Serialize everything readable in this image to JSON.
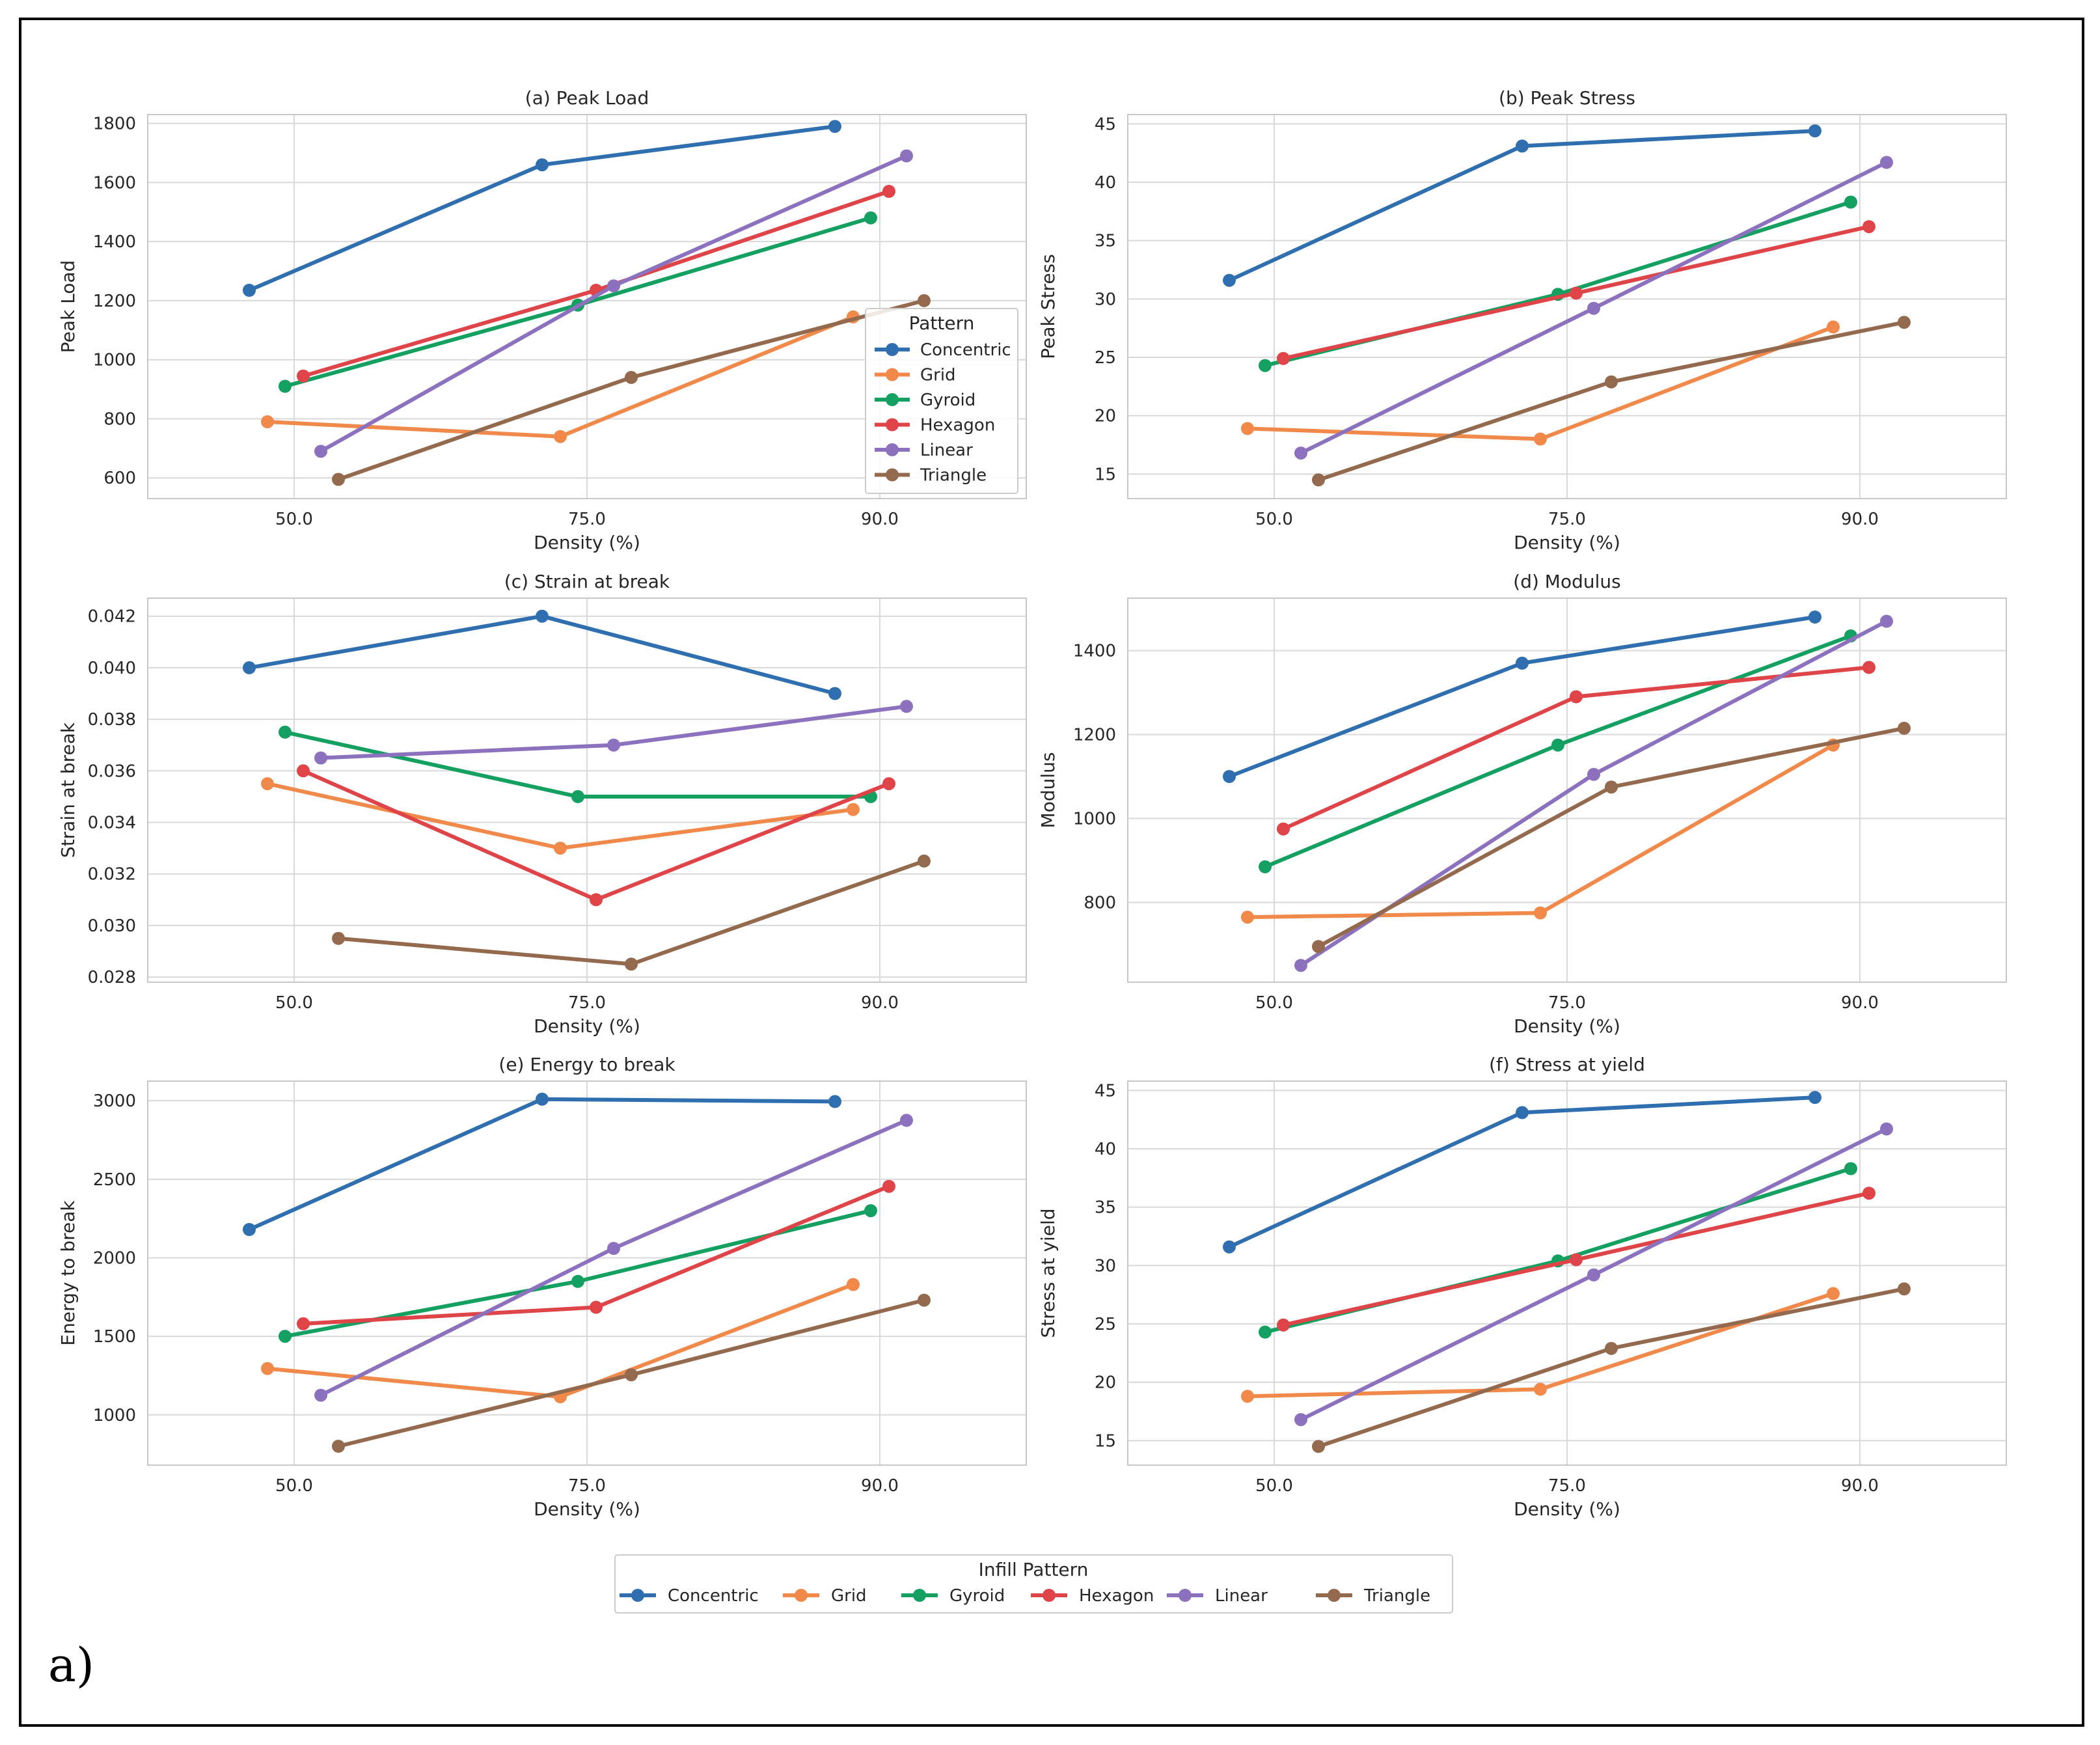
{
  "figure_label": "a)",
  "legend_title": "Infill Pattern",
  "inner_legend_title": "Pattern",
  "patterns": [
    {
      "name": "Concentric",
      "color": "#2f6fb0"
    },
    {
      "name": "Grid",
      "color": "#f0894a"
    },
    {
      "name": "Gyroid",
      "color": "#14a060"
    },
    {
      "name": "Hexagon",
      "color": "#de4448"
    },
    {
      "name": "Linear",
      "color": "#8c72be"
    },
    {
      "name": "Triangle",
      "color": "#946a4e"
    }
  ],
  "chart_data": [
    {
      "type": "line",
      "title": "(a) Peak Load",
      "xlabel": "Density (%)",
      "ylabel": "Peak Load",
      "categories": [
        "50.0",
        "75.0",
        "90.0"
      ],
      "yticks": [
        600,
        800,
        1000,
        1200,
        1400,
        1600,
        1800
      ],
      "ylim": [
        530,
        1830
      ],
      "has_legend": true,
      "series": [
        {
          "name": "Concentric",
          "values": [
            1235,
            1660,
            1790
          ]
        },
        {
          "name": "Grid",
          "values": [
            790,
            740,
            1145
          ]
        },
        {
          "name": "Gyroid",
          "values": [
            910,
            1185,
            1480
          ]
        },
        {
          "name": "Hexagon",
          "values": [
            945,
            1235,
            1570
          ]
        },
        {
          "name": "Linear",
          "values": [
            690,
            1250,
            1690
          ]
        },
        {
          "name": "Triangle",
          "values": [
            595,
            940,
            1200
          ]
        }
      ]
    },
    {
      "type": "line",
      "title": "(b) Peak Stress",
      "xlabel": "Density (%)",
      "ylabel": "Peak Stress",
      "categories": [
        "50.0",
        "75.0",
        "90.0"
      ],
      "yticks": [
        15,
        20,
        25,
        30,
        35,
        40,
        45
      ],
      "ylim": [
        12.9,
        45.8
      ],
      "has_legend": false,
      "series": [
        {
          "name": "Concentric",
          "values": [
            31.6,
            43.1,
            44.4
          ]
        },
        {
          "name": "Grid",
          "values": [
            18.9,
            18.0,
            27.6
          ]
        },
        {
          "name": "Gyroid",
          "values": [
            24.3,
            30.4,
            38.3
          ]
        },
        {
          "name": "Hexagon",
          "values": [
            24.9,
            30.5,
            36.2
          ]
        },
        {
          "name": "Linear",
          "values": [
            16.8,
            29.2,
            41.7
          ]
        },
        {
          "name": "Triangle",
          "values": [
            14.5,
            22.9,
            28.0
          ]
        }
      ]
    },
    {
      "type": "line",
      "title": "(c) Strain at break",
      "xlabel": "Density (%)",
      "ylabel": "Strain at break",
      "categories": [
        "50.0",
        "75.0",
        "90.0"
      ],
      "yticks": [
        0.028,
        0.03,
        0.032,
        0.034,
        0.036,
        0.038,
        0.04,
        0.042
      ],
      "ytick_labels": [
        "0.028",
        "0.030",
        "0.032",
        "0.034",
        "0.036",
        "0.038",
        "0.040",
        "0.042"
      ],
      "ylim": [
        0.0278,
        0.0427
      ],
      "has_legend": false,
      "series": [
        {
          "name": "Concentric",
          "values": [
            0.04,
            0.042,
            0.039
          ]
        },
        {
          "name": "Grid",
          "values": [
            0.0355,
            0.033,
            0.0345
          ]
        },
        {
          "name": "Gyroid",
          "values": [
            0.0375,
            0.035,
            0.035
          ]
        },
        {
          "name": "Hexagon",
          "values": [
            0.036,
            0.031,
            0.0355
          ]
        },
        {
          "name": "Linear",
          "values": [
            0.0365,
            0.037,
            0.0385
          ]
        },
        {
          "name": "Triangle",
          "values": [
            0.0295,
            0.0285,
            0.0325
          ]
        }
      ]
    },
    {
      "type": "line",
      "title": "(d) Modulus",
      "xlabel": "Density (%)",
      "ylabel": "Modulus",
      "categories": [
        "50.0",
        "75.0",
        "90.0"
      ],
      "yticks": [
        800,
        1000,
        1200,
        1400
      ],
      "ylim": [
        610,
        1525
      ],
      "has_legend": false,
      "series": [
        {
          "name": "Concentric",
          "values": [
            1100,
            1370,
            1480
          ]
        },
        {
          "name": "Grid",
          "values": [
            765,
            775,
            1175
          ]
        },
        {
          "name": "Gyroid",
          "values": [
            885,
            1175,
            1435
          ]
        },
        {
          "name": "Hexagon",
          "values": [
            975,
            1290,
            1360
          ]
        },
        {
          "name": "Linear",
          "values": [
            650,
            1105,
            1470
          ]
        },
        {
          "name": "Triangle",
          "values": [
            695,
            1075,
            1215
          ]
        }
      ]
    },
    {
      "type": "line",
      "title": "(e) Energy to break",
      "xlabel": "Density (%)",
      "ylabel": "Energy to break",
      "categories": [
        "50.0",
        "75.0",
        "90.0"
      ],
      "yticks": [
        1000,
        1500,
        2000,
        2500,
        3000
      ],
      "ylim": [
        680,
        3125
      ],
      "has_legend": false,
      "series": [
        {
          "name": "Concentric",
          "values": [
            2180,
            3010,
            2995
          ]
        },
        {
          "name": "Grid",
          "values": [
            1295,
            1115,
            1830
          ]
        },
        {
          "name": "Gyroid",
          "values": [
            1500,
            1850,
            2300
          ]
        },
        {
          "name": "Hexagon",
          "values": [
            1580,
            1685,
            2455
          ]
        },
        {
          "name": "Linear",
          "values": [
            1125,
            2060,
            2875
          ]
        },
        {
          "name": "Triangle",
          "values": [
            800,
            1255,
            1730
          ]
        }
      ]
    },
    {
      "type": "line",
      "title": "(f) Stress at yield",
      "xlabel": "Density (%)",
      "ylabel": "Stress at yield",
      "categories": [
        "50.0",
        "75.0",
        "90.0"
      ],
      "yticks": [
        15,
        20,
        25,
        30,
        35,
        40,
        45
      ],
      "ylim": [
        12.9,
        45.8
      ],
      "has_legend": false,
      "series": [
        {
          "name": "Concentric",
          "values": [
            31.6,
            43.1,
            44.4
          ]
        },
        {
          "name": "Grid",
          "values": [
            18.8,
            19.4,
            27.6
          ]
        },
        {
          "name": "Gyroid",
          "values": [
            24.3,
            30.4,
            38.3
          ]
        },
        {
          "name": "Hexagon",
          "values": [
            24.9,
            30.5,
            36.2
          ]
        },
        {
          "name": "Linear",
          "values": [
            16.8,
            29.2,
            41.7
          ]
        },
        {
          "name": "Triangle",
          "values": [
            14.5,
            22.9,
            28.0
          ]
        }
      ]
    }
  ]
}
